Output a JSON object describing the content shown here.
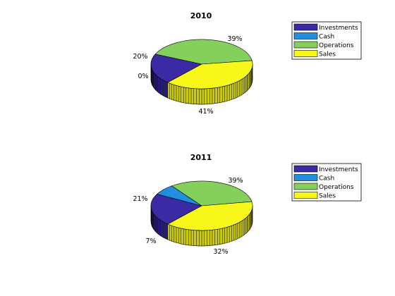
{
  "chart_data": [
    {
      "type": "pie",
      "style": "3d",
      "title": "2010",
      "legend_placement": "top-right",
      "slices": [
        {
          "label": "Investments",
          "value": 20,
          "display": "20%",
          "color": "#3a2aa3"
        },
        {
          "label": "Cash",
          "value": 0,
          "display": "0%",
          "color": "#1f8fe0"
        },
        {
          "label": "Operations",
          "value": 41,
          "display": "41%",
          "color": "#85cf5d"
        },
        {
          "label": "Sales",
          "value": 39,
          "display": "39%",
          "color": "#f7f71a"
        }
      ]
    },
    {
      "type": "pie",
      "style": "3d",
      "title": "2011",
      "legend_placement": "top-right",
      "slices": [
        {
          "label": "Investments",
          "value": 21,
          "display": "21%",
          "color": "#3a2aa3"
        },
        {
          "label": "Cash",
          "value": 7,
          "display": "7%",
          "color": "#1f8fe0"
        },
        {
          "label": "Operations",
          "value": 32,
          "display": "32%",
          "color": "#85cf5d"
        },
        {
          "label": "Sales",
          "value": 39,
          "display": "39%",
          "color": "#f7f71a"
        }
      ]
    }
  ]
}
